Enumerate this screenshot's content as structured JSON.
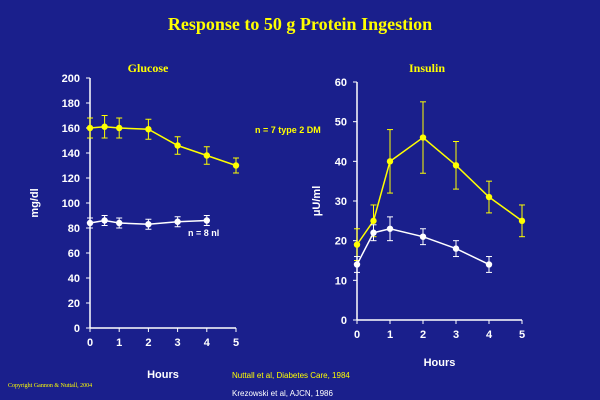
{
  "slide": {
    "title": "Response to 50 g Protein Ingestion",
    "copyright": "Copyright Gannon & Nuttall, 2004",
    "citations": [
      "Nuttall et al, Diabetes Care, 1984",
      "Krezowski et al, AJCN, 1986"
    ],
    "colors": {
      "background": "#1a1f8c",
      "title": "#ffff00",
      "axis": "#ffffff",
      "dm_series": "#ffff00",
      "nl_series": "#ffffff"
    }
  },
  "chart_data": [
    {
      "type": "line",
      "title": "Glucose",
      "xlabel": "Hours",
      "ylabel": "mg/dl",
      "xlim": [
        0,
        5
      ],
      "ylim": [
        0,
        200
      ],
      "xticks": [
        0,
        1,
        2,
        3,
        4,
        5
      ],
      "yticks": [
        0,
        20,
        40,
        60,
        80,
        100,
        120,
        140,
        160,
        180,
        200
      ],
      "grid": false,
      "series": [
        {
          "name": "n = 7  type 2 DM",
          "color": "#ffff00",
          "x": [
            0,
            0.5,
            1,
            2,
            3,
            4,
            5
          ],
          "y": [
            160,
            161,
            160,
            159,
            146,
            138,
            130
          ],
          "err": [
            8,
            9,
            8,
            8,
            7,
            7,
            6
          ]
        },
        {
          "name": "n = 8 nl",
          "color": "#ffffff",
          "x": [
            0,
            0.5,
            1,
            2,
            3,
            4
          ],
          "y": [
            84,
            86,
            84,
            83,
            85,
            86
          ],
          "err": [
            4,
            4,
            4,
            4,
            4,
            4
          ]
        }
      ]
    },
    {
      "type": "line",
      "title": "Insulin",
      "xlabel": "Hours",
      "ylabel": "μU/ml",
      "xlim": [
        0,
        5
      ],
      "ylim": [
        0,
        60
      ],
      "xticks": [
        0,
        1,
        2,
        3,
        4,
        5
      ],
      "yticks": [
        0,
        10,
        20,
        30,
        40,
        50,
        60
      ],
      "grid": false,
      "series": [
        {
          "name": "",
          "color": "#ffff00",
          "x": [
            0,
            0.5,
            1,
            2,
            3,
            4,
            5
          ],
          "y": [
            19,
            25,
            40,
            46,
            39,
            31,
            25
          ],
          "err": [
            4,
            4,
            8,
            9,
            6,
            4,
            4
          ]
        },
        {
          "name": "",
          "color": "#ffffff",
          "x": [
            0,
            0.5,
            1,
            2,
            3,
            4
          ],
          "y": [
            14,
            22,
            23,
            21,
            18,
            14
          ],
          "err": [
            2,
            2,
            3,
            2,
            2,
            2
          ]
        }
      ]
    }
  ]
}
